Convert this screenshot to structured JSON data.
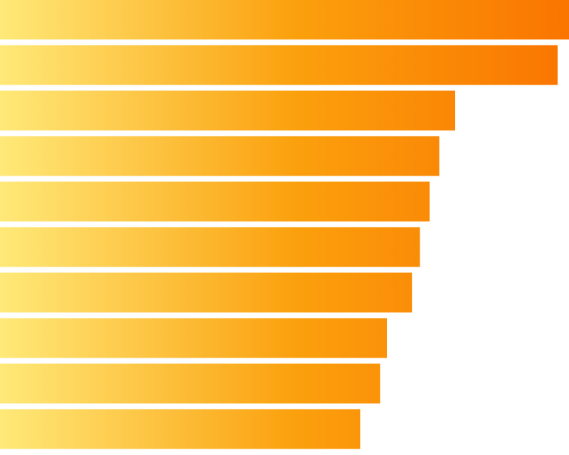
{
  "chart_data": {
    "type": "bar",
    "orientation": "horizontal",
    "values": [
      100,
      98,
      80,
      77.2,
      75.5,
      73.8,
      72.4,
      68,
      66.8,
      63.3
    ],
    "xlim": [
      0,
      100
    ],
    "grid": false,
    "legend": "none",
    "colors": {
      "gradient_start": "#ffe979",
      "gradient_mid": "#fba00d",
      "gradient_end": "#fa7500",
      "background": "#ffffff"
    }
  }
}
